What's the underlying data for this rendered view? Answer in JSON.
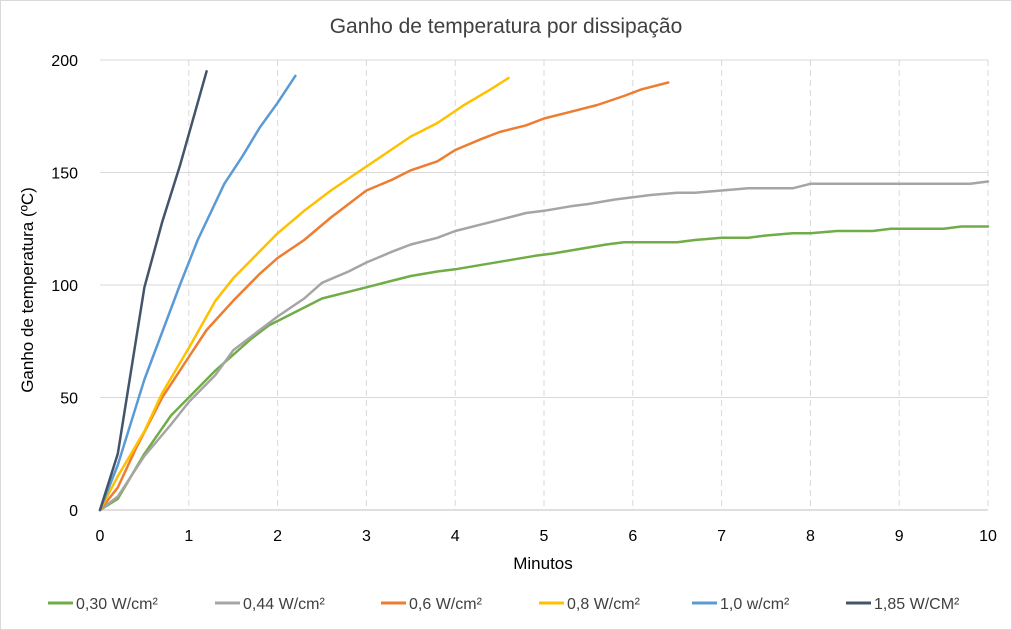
{
  "chart_data": {
    "type": "line",
    "title": "Ganho de temperatura por dissipação",
    "xlabel": "Minutos",
    "ylabel": "Ganho de temperatura (ºC)",
    "xlim": [
      0,
      10
    ],
    "ylim": [
      0,
      200
    ],
    "xticks": [
      0,
      1,
      2,
      3,
      4,
      5,
      6,
      7,
      8,
      9,
      10
    ],
    "yticks": [
      0,
      50,
      100,
      150,
      200
    ],
    "grid": {
      "vertical": "dashed",
      "horizontal": "solid"
    },
    "legend_position": "bottom",
    "series": [
      {
        "name": "0,30 W/cm²",
        "color": "#70ad47",
        "x": [
          0,
          0.2,
          0.5,
          0.8,
          1.0,
          1.3,
          1.5,
          1.7,
          1.9,
          2.2,
          2.5,
          2.8,
          3.0,
          3.3,
          3.5,
          3.8,
          4.0,
          4.3,
          4.6,
          4.9,
          5.1,
          5.4,
          5.7,
          5.9,
          6.2,
          6.5,
          6.7,
          7.0,
          7.3,
          7.5,
          7.8,
          8.0,
          8.3,
          8.7,
          8.9,
          9.2,
          9.5,
          9.7,
          10.0
        ],
        "y": [
          0,
          5,
          25,
          42,
          50,
          62,
          69,
          76,
          82,
          88,
          94,
          97,
          99,
          102,
          104,
          106,
          107,
          109,
          111,
          113,
          114,
          116,
          118,
          119,
          119,
          119,
          120,
          121,
          121,
          122,
          123,
          123,
          124,
          124,
          125,
          125,
          125,
          126,
          126
        ]
      },
      {
        "name": "0,44 W/cm²",
        "color": "#a5a5a5",
        "x": [
          0,
          0.2,
          0.5,
          0.8,
          1.0,
          1.3,
          1.5,
          1.8,
          2.0,
          2.3,
          2.5,
          2.8,
          3.0,
          3.3,
          3.5,
          3.8,
          4.0,
          4.3,
          4.5,
          4.8,
          5.0,
          5.3,
          5.5,
          5.8,
          6.0,
          6.2,
          6.5,
          6.7,
          7.0,
          7.3,
          7.5,
          7.8,
          8.0,
          8.5,
          9.0,
          9.5,
          9.8,
          10.0
        ],
        "y": [
          0,
          6,
          24,
          38,
          48,
          60,
          71,
          80,
          86,
          94,
          101,
          106,
          110,
          115,
          118,
          121,
          124,
          127,
          129,
          132,
          133,
          135,
          136,
          138,
          139,
          140,
          141,
          141,
          142,
          143,
          143,
          143,
          145,
          145,
          145,
          145,
          145,
          146
        ]
      },
      {
        "name": "0,6 W/cm²",
        "color": "#ed7d31",
        "x": [
          0,
          0.2,
          0.4,
          0.7,
          1.0,
          1.2,
          1.5,
          1.8,
          2.0,
          2.3,
          2.6,
          2.9,
          3.0,
          3.3,
          3.5,
          3.8,
          4.0,
          4.3,
          4.5,
          4.8,
          5.0,
          5.3,
          5.6,
          5.9,
          6.1,
          6.4
        ],
        "y": [
          0,
          10,
          27,
          50,
          68,
          80,
          93,
          105,
          112,
          120,
          130,
          139,
          142,
          147,
          151,
          155,
          160,
          165,
          168,
          171,
          174,
          177,
          180,
          184,
          187,
          190
        ]
      },
      {
        "name": "0,8 W/cm²",
        "color": "#ffc000",
        "x": [
          0,
          0.2,
          0.5,
          0.7,
          1.0,
          1.3,
          1.5,
          1.8,
          2.0,
          2.3,
          2.6,
          2.9,
          3.2,
          3.5,
          3.8,
          4.1,
          4.4,
          4.6
        ],
        "y": [
          0,
          15,
          35,
          52,
          72,
          93,
          103,
          115,
          123,
          133,
          142,
          150,
          158,
          166,
          172,
          180,
          187,
          192
        ]
      },
      {
        "name": "1,0 w/cm²",
        "color": "#5b9bd5",
        "x": [
          0,
          0.2,
          0.5,
          0.9,
          1.1,
          1.4,
          1.6,
          1.8,
          2.0,
          2.2
        ],
        "y": [
          0,
          20,
          58,
          100,
          120,
          145,
          157,
          170,
          181,
          193
        ]
      },
      {
        "name": "1,85 W/CM²",
        "color": "#44546a",
        "x": [
          0,
          0.2,
          0.5,
          0.7,
          0.9,
          1.1,
          1.2
        ],
        "y": [
          0,
          25,
          99,
          128,
          153,
          181,
          195
        ]
      }
    ]
  }
}
